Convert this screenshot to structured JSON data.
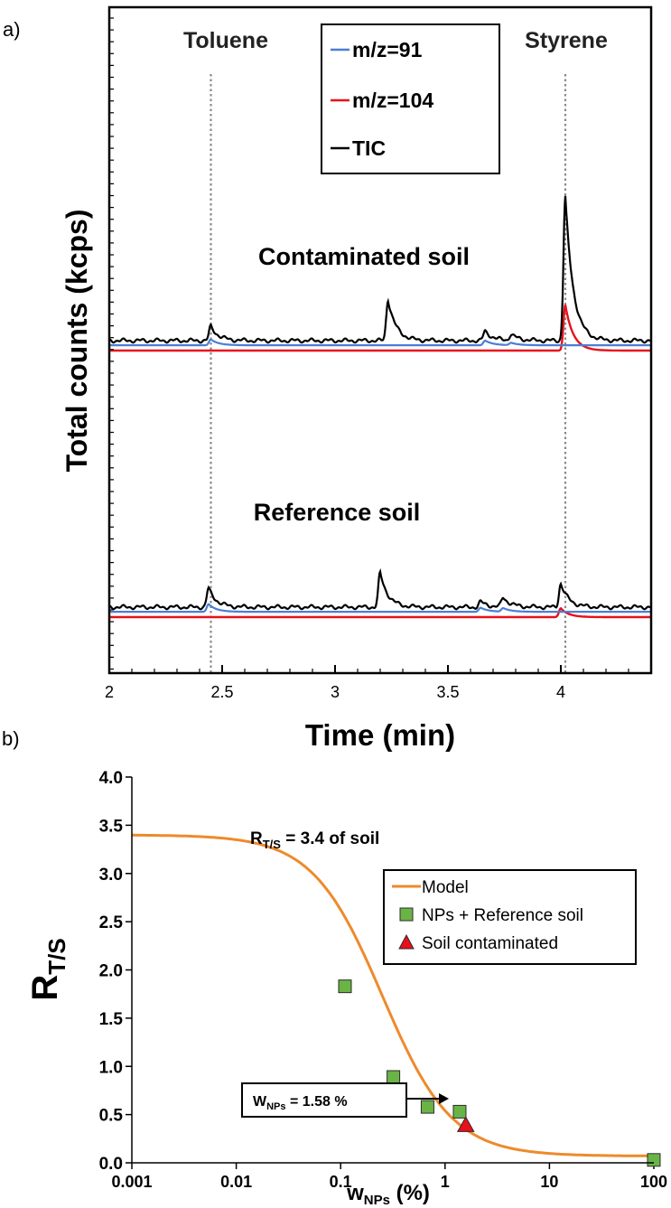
{
  "panels": {
    "a_label": "a)",
    "b_label": "b)"
  },
  "chart_data": [
    {
      "type": "line",
      "panel": "a",
      "xlabel": "Time (min)",
      "ylabel": "Total counts (kcps)",
      "xlim": [
        2,
        4.4
      ],
      "xticks": [
        2,
        2.5,
        3,
        3.5,
        4
      ],
      "xtick_labels": [
        "2",
        "2.5",
        "3",
        "3.5",
        "4"
      ],
      "y_tick_labels_shown": false,
      "legend": {
        "placement": "top-center",
        "entries": [
          {
            "label": "m/z=91",
            "color": "#4a7fd4"
          },
          {
            "label": "m/z=104",
            "color": "#e8101a"
          },
          {
            "label": "TIC",
            "color": "#000000"
          }
        ]
      },
      "reference_lines": [
        {
          "label": "Toluene",
          "x": 2.45
        },
        {
          "label": "Styrene",
          "x": 4.02
        }
      ],
      "traces": [
        {
          "label": "Contaminated soil",
          "tic_baseline": 0.6,
          "mz91_baseline": 0.3,
          "mz104_baseline": 0.0,
          "tic_peaks": [
            {
              "x": 2.45,
              "h": 2.4
            },
            {
              "x": 3.235,
              "h": 7.0
            },
            {
              "x": 3.665,
              "h": 1.6
            },
            {
              "x": 3.78,
              "h": 1.0
            },
            {
              "x": 4.02,
              "h": 24.5
            }
          ],
          "mz91_peaks": [
            {
              "x": 2.45,
              "h": 1.0
            },
            {
              "x": 3.665,
              "h": 0.8
            },
            {
              "x": 3.78,
              "h": 0.4
            }
          ],
          "mz104_peaks": [
            {
              "x": 4.02,
              "h": 7.8
            }
          ]
        },
        {
          "label": "Reference soil",
          "tic_baseline": 0.6,
          "mz91_baseline": 0.3,
          "mz104_baseline": 0.0,
          "tic_peaks": [
            {
              "x": 2.44,
              "h": 3.2
            },
            {
              "x": 3.2,
              "h": 5.8
            },
            {
              "x": 3.645,
              "h": 0.9
            },
            {
              "x": 3.745,
              "h": 1.6
            },
            {
              "x": 4.0,
              "h": 4.0
            }
          ],
          "mz91_peaks": [
            {
              "x": 2.44,
              "h": 1.3
            },
            {
              "x": 3.645,
              "h": 0.7
            },
            {
              "x": 3.745,
              "h": 0.6
            }
          ],
          "mz104_peaks": [
            {
              "x": 4.0,
              "h": 1.5
            }
          ]
        }
      ]
    },
    {
      "type": "scatter",
      "panel": "b",
      "xlabel": "w",
      "xlabel_sub": "NPs",
      "xlabel_suffix": " (%)",
      "ylabel": "R",
      "ylabel_sub": "T/S",
      "x_scale": "log",
      "xlim": [
        0.001,
        100
      ],
      "ylim": [
        0,
        4
      ],
      "xticks": [
        0.001,
        0.01,
        0.1,
        1,
        10,
        100
      ],
      "xtick_labels": [
        "0.001",
        "0.01",
        "0.1",
        "1",
        "10",
        "100"
      ],
      "yticks": [
        0,
        0.5,
        1,
        1.5,
        2,
        2.5,
        3,
        3.5,
        4
      ],
      "ytick_labels": [
        "0.0",
        "0.5",
        "1.0",
        "1.5",
        "2.0",
        "2.5",
        "3.0",
        "3.5",
        "4.0"
      ],
      "grid": false,
      "annotation_top": {
        "main": "R",
        "sub": "T/S",
        "rest": " = 3.4 of soil"
      },
      "annotation_box": {
        "main": "W",
        "sub": "NPs",
        "rest": " = 1.58 %"
      },
      "legend": {
        "placement": "right",
        "entries": [
          {
            "label": "Model",
            "marker": "line",
            "color": "#ee8a2b"
          },
          {
            "label": "NPs + Reference soil",
            "marker": "square",
            "color": "#6ab446"
          },
          {
            "label": "Soil contaminated",
            "marker": "triangle",
            "color": "#e8101a"
          }
        ]
      },
      "model": {
        "label": "Model",
        "high": 3.4,
        "low": 0.07,
        "midpoint_x": 0.25,
        "steepness": 1.3
      },
      "series": [
        {
          "name": "NPs + Reference soil",
          "marker": "square",
          "points": [
            {
              "x": 0.11,
              "y": 1.83
            },
            {
              "x": 0.32,
              "y": 0.89
            },
            {
              "x": 0.68,
              "y": 0.58
            },
            {
              "x": 1.38,
              "y": 0.53
            },
            {
              "x": 100,
              "y": 0.03
            }
          ]
        },
        {
          "name": "Soil contaminated",
          "marker": "triangle",
          "points": [
            {
              "x": 1.58,
              "y": 0.39
            }
          ]
        }
      ]
    }
  ]
}
